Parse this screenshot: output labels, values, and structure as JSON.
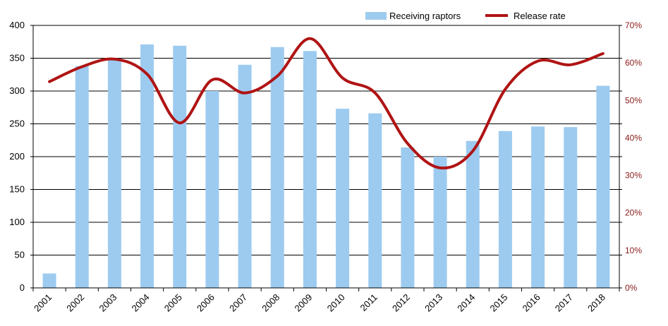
{
  "colors": {
    "bar": "#9DCBF0",
    "line": "#B01414",
    "right_axis_text": "#8B1A1A",
    "grid": "#000000"
  },
  "chart_data": {
    "type": "bar",
    "categories": [
      "2001",
      "2002",
      "2003",
      "2004",
      "2005",
      "2006",
      "2007",
      "2008",
      "2009",
      "2010",
      "2011",
      "2012",
      "2013",
      "2014",
      "2015",
      "2016",
      "2017",
      "2018"
    ],
    "series": [
      {
        "name": "Receiving raptors",
        "type": "bar",
        "axis": "left",
        "values": [
          22,
          338,
          348,
          371,
          369,
          300,
          340,
          367,
          361,
          273,
          266,
          214,
          200,
          224,
          239,
          246,
          245,
          308
        ]
      },
      {
        "name": "Release rate",
        "type": "line",
        "axis": "right",
        "smooth": true,
        "values": [
          0.55,
          0.59,
          0.61,
          0.57,
          0.44,
          0.555,
          0.52,
          0.565,
          0.665,
          0.56,
          0.52,
          0.385,
          0.32,
          0.365,
          0.53,
          0.605,
          0.595,
          0.625
        ]
      }
    ],
    "y_left": {
      "lim": [
        0,
        400
      ],
      "ticks": [
        "0",
        "50",
        "100",
        "150",
        "200",
        "250",
        "300",
        "350",
        "400"
      ]
    },
    "y_right": {
      "lim": [
        0,
        0.7
      ],
      "ticks": [
        "0%",
        "10%",
        "20%",
        "30%",
        "40%",
        "50%",
        "60%",
        "70%"
      ]
    },
    "legend_placement": "top-right",
    "grid": "horizontal"
  }
}
